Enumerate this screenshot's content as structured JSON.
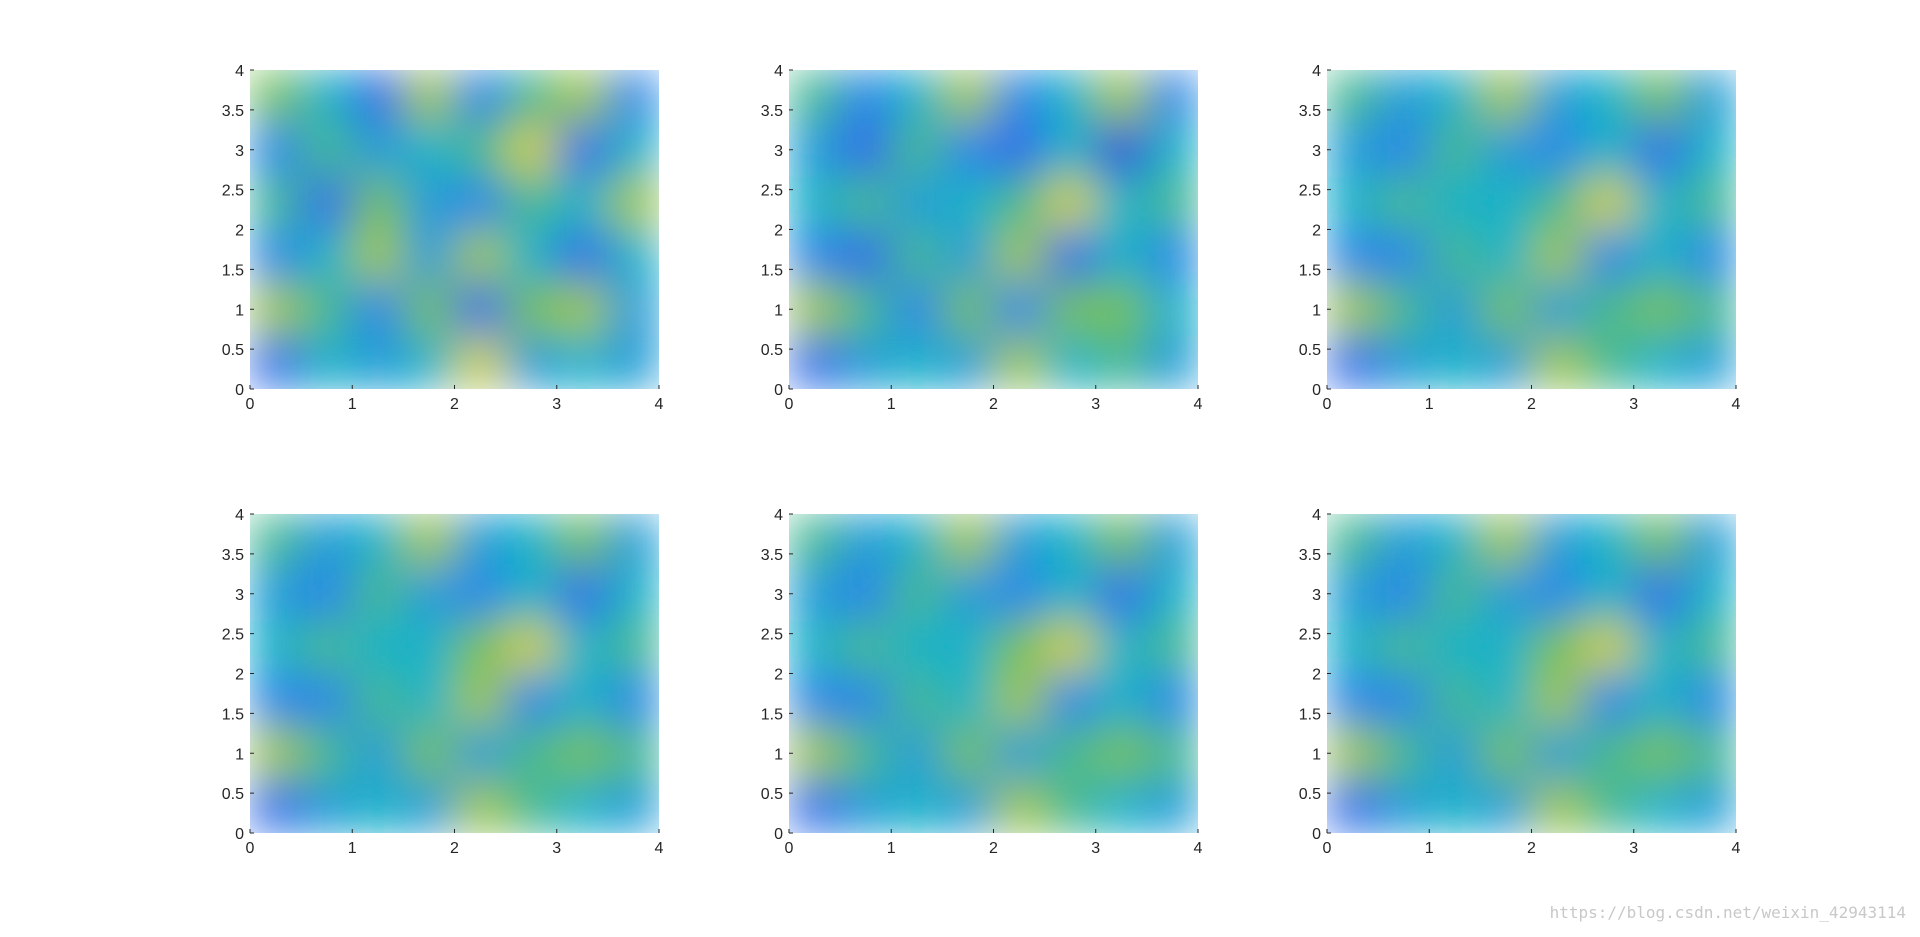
{
  "chart_data": [
    {
      "type": "heatmap",
      "colormap": "parula",
      "xlim": [
        0,
        4
      ],
      "ylim": [
        0,
        4
      ],
      "xticks": [
        0,
        1,
        2,
        3,
        4
      ],
      "yticks": [
        0,
        0.5,
        1,
        1.5,
        2,
        2.5,
        3,
        3.5,
        4
      ],
      "z": [
        [
          0.7,
          0.5,
          0.2,
          0.8,
          0.3,
          0.6,
          0.8,
          0.3
        ],
        [
          0.3,
          0.6,
          0.4,
          0.5,
          0.6,
          0.9,
          0.2,
          0.5
        ],
        [
          0.6,
          0.2,
          0.7,
          0.4,
          0.3,
          0.6,
          0.5,
          0.8
        ],
        [
          0.3,
          0.5,
          0.8,
          0.4,
          0.8,
          0.5,
          0.2,
          0.5
        ],
        [
          0.8,
          0.6,
          0.3,
          0.7,
          0.2,
          0.7,
          0.8,
          0.4
        ],
        [
          0.2,
          0.5,
          0.4,
          0.5,
          0.9,
          0.4,
          0.5,
          0.4
        ]
      ]
    },
    {
      "type": "heatmap",
      "colormap": "parula",
      "xlim": [
        0,
        4
      ],
      "ylim": [
        0,
        4
      ],
      "xticks": [
        0,
        1,
        2,
        3,
        4
      ],
      "yticks": [
        0,
        0.5,
        1,
        1.5,
        2,
        2.5,
        3,
        3.5,
        4
      ],
      "z": [
        [
          0.6,
          0.3,
          0.5,
          0.8,
          0.3,
          0.5,
          0.8,
          0.3
        ],
        [
          0.4,
          0.2,
          0.6,
          0.3,
          0.2,
          0.5,
          0.1,
          0.5
        ],
        [
          0.5,
          0.6,
          0.4,
          0.5,
          0.6,
          0.9,
          0.5,
          0.6
        ],
        [
          0.3,
          0.2,
          0.6,
          0.4,
          0.8,
          0.2,
          0.5,
          0.3
        ],
        [
          0.8,
          0.6,
          0.3,
          0.7,
          0.3,
          0.7,
          0.7,
          0.5
        ],
        [
          0.2,
          0.4,
          0.5,
          0.4,
          0.8,
          0.5,
          0.6,
          0.4
        ]
      ]
    },
    {
      "type": "heatmap",
      "colormap": "parula",
      "xlim": [
        0,
        4
      ],
      "ylim": [
        0,
        4
      ],
      "xticks": [
        0,
        1,
        2,
        3,
        4
      ],
      "yticks": [
        0,
        0.5,
        1,
        1.5,
        2,
        2.5,
        3,
        3.5,
        4
      ],
      "z": [
        [
          0.6,
          0.4,
          0.5,
          0.8,
          0.4,
          0.5,
          0.7,
          0.4
        ],
        [
          0.4,
          0.3,
          0.6,
          0.4,
          0.3,
          0.5,
          0.2,
          0.5
        ],
        [
          0.5,
          0.6,
          0.5,
          0.5,
          0.6,
          0.9,
          0.5,
          0.6
        ],
        [
          0.3,
          0.3,
          0.6,
          0.5,
          0.8,
          0.3,
          0.5,
          0.3
        ],
        [
          0.8,
          0.6,
          0.4,
          0.7,
          0.4,
          0.6,
          0.7,
          0.6
        ],
        [
          0.2,
          0.4,
          0.5,
          0.4,
          0.8,
          0.6,
          0.5,
          0.4
        ]
      ]
    },
    {
      "type": "heatmap",
      "colormap": "parula",
      "xlim": [
        0,
        4
      ],
      "ylim": [
        0,
        4
      ],
      "xticks": [
        0,
        1,
        2,
        3,
        4
      ],
      "yticks": [
        0,
        0.5,
        1,
        1.5,
        2,
        2.5,
        3,
        3.5,
        4
      ],
      "z": [
        [
          0.6,
          0.4,
          0.5,
          0.8,
          0.4,
          0.5,
          0.7,
          0.4
        ],
        [
          0.4,
          0.3,
          0.6,
          0.4,
          0.3,
          0.5,
          0.2,
          0.5
        ],
        [
          0.5,
          0.6,
          0.5,
          0.5,
          0.7,
          0.9,
          0.5,
          0.6
        ],
        [
          0.3,
          0.3,
          0.6,
          0.5,
          0.8,
          0.3,
          0.5,
          0.3
        ],
        [
          0.8,
          0.6,
          0.4,
          0.7,
          0.4,
          0.6,
          0.7,
          0.6
        ],
        [
          0.2,
          0.4,
          0.5,
          0.4,
          0.8,
          0.6,
          0.5,
          0.4
        ]
      ]
    },
    {
      "type": "heatmap",
      "colormap": "parula",
      "xlim": [
        0,
        4
      ],
      "ylim": [
        0,
        4
      ],
      "xticks": [
        0,
        1,
        2,
        3,
        4
      ],
      "yticks": [
        0,
        0.5,
        1,
        1.5,
        2,
        2.5,
        3,
        3.5,
        4
      ],
      "z": [
        [
          0.6,
          0.4,
          0.5,
          0.8,
          0.4,
          0.5,
          0.7,
          0.4
        ],
        [
          0.4,
          0.3,
          0.6,
          0.4,
          0.3,
          0.5,
          0.2,
          0.5
        ],
        [
          0.5,
          0.6,
          0.5,
          0.5,
          0.7,
          0.9,
          0.5,
          0.6
        ],
        [
          0.3,
          0.3,
          0.6,
          0.5,
          0.8,
          0.3,
          0.5,
          0.3
        ],
        [
          0.8,
          0.6,
          0.4,
          0.7,
          0.4,
          0.6,
          0.7,
          0.6
        ],
        [
          0.2,
          0.4,
          0.5,
          0.4,
          0.8,
          0.6,
          0.5,
          0.4
        ]
      ]
    },
    {
      "type": "heatmap",
      "colormap": "parula",
      "xlim": [
        0,
        4
      ],
      "ylim": [
        0,
        4
      ],
      "xticks": [
        0,
        1,
        2,
        3,
        4
      ],
      "yticks": [
        0,
        0.5,
        1,
        1.5,
        2,
        2.5,
        3,
        3.5,
        4
      ],
      "z": [
        [
          0.6,
          0.4,
          0.5,
          0.8,
          0.4,
          0.5,
          0.7,
          0.4
        ],
        [
          0.4,
          0.3,
          0.6,
          0.4,
          0.3,
          0.5,
          0.2,
          0.5
        ],
        [
          0.5,
          0.6,
          0.5,
          0.5,
          0.7,
          0.9,
          0.5,
          0.6
        ],
        [
          0.3,
          0.3,
          0.6,
          0.5,
          0.8,
          0.3,
          0.5,
          0.3
        ],
        [
          0.8,
          0.6,
          0.4,
          0.7,
          0.4,
          0.6,
          0.7,
          0.6
        ],
        [
          0.2,
          0.4,
          0.5,
          0.4,
          0.8,
          0.6,
          0.5,
          0.4
        ]
      ]
    }
  ],
  "watermark": "https://blog.csdn.net/weixin_42943114"
}
